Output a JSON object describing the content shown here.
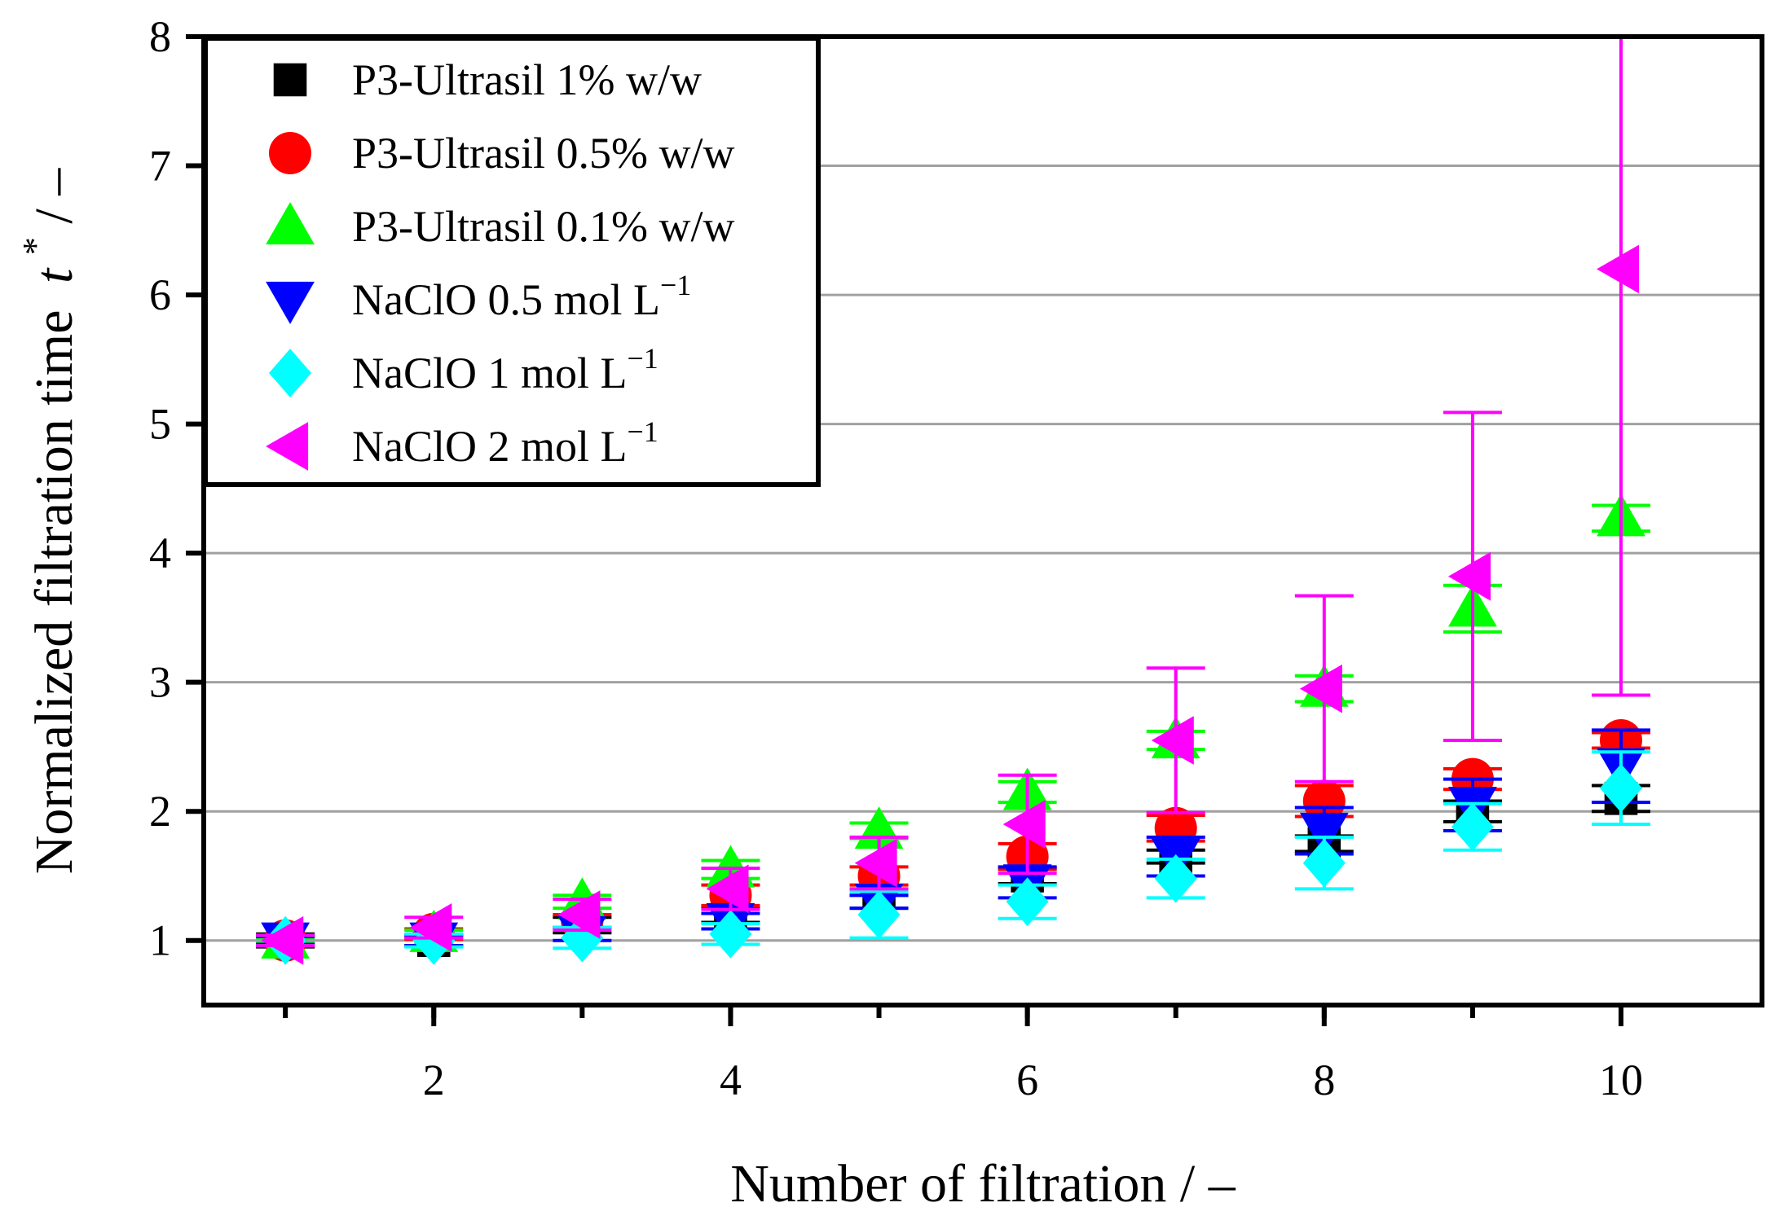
{
  "chart_data": {
    "type": "scatter",
    "xlabel": "Number of filtration / –",
    "ylabel": "Normalized filtration time",
    "ylabel_symbol": "t",
    "ylabel_superscript": "*",
    "ylabel_unit": " / –",
    "xlim": [
      0.45,
      10.95
    ],
    "ylim": [
      0.5,
      8
    ],
    "x_ticks": [
      2,
      4,
      6,
      8,
      10
    ],
    "x_tick_labels": [
      "2",
      "4",
      "6",
      "8",
      "10"
    ],
    "y_ticks": [
      1,
      2,
      3,
      4,
      5,
      6,
      7,
      8
    ],
    "y_tick_labels": [
      "1",
      "2",
      "3",
      "4",
      "5",
      "6",
      "7",
      "8"
    ],
    "grid": "horizontal",
    "legend_position": "top-left",
    "x": [
      1,
      2,
      3,
      4,
      5,
      6,
      7,
      8,
      9,
      10
    ],
    "series": [
      {
        "name": "P3-Ultrasil 1% w/w",
        "legend_main": "P3-Ultrasil 1% w/w",
        "legend_sup": "",
        "marker": "square",
        "color": "#000000",
        "values": [
          1.0,
          1.0,
          1.12,
          1.2,
          1.3,
          1.5,
          1.65,
          1.75,
          2.0,
          2.1
        ],
        "errors": [
          0.05,
          0.04,
          0.06,
          0.06,
          0.05,
          0.06,
          0.05,
          0.06,
          0.08,
          0.1
        ]
      },
      {
        "name": "P3-Ultrasil 0.5% w/w",
        "legend_main": "P3-Ultrasil 0.5% w/w",
        "legend_sup": "",
        "marker": "circle",
        "color": "#ff0000",
        "values": [
          1.0,
          1.05,
          1.15,
          1.35,
          1.5,
          1.65,
          1.87,
          2.08,
          2.25,
          2.55
        ],
        "errors": [
          0.03,
          0.04,
          0.05,
          0.08,
          0.07,
          0.1,
          0.1,
          0.12,
          0.08,
          0.06
        ]
      },
      {
        "name": "P3-Ultrasil 0.1% w/w",
        "legend_main": "P3-Ultrasil 0.1% w/w",
        "legend_sup": "",
        "marker": "triangle-up",
        "color": "#00ff00",
        "values": [
          1.0,
          1.05,
          1.3,
          1.55,
          1.85,
          2.15,
          2.55,
          2.95,
          3.57,
          4.27
        ],
        "errors": [
          0.02,
          0.03,
          0.05,
          0.07,
          0.06,
          0.08,
          0.07,
          0.1,
          0.18,
          0.1
        ]
      },
      {
        "name": "NaClO 0.5 mol L⁻¹",
        "legend_main": "NaClO 0.5 mol L",
        "legend_sup": "−1",
        "marker": "triangle-down",
        "color": "#0000ff",
        "values": [
          1.0,
          1.0,
          1.05,
          1.15,
          1.3,
          1.45,
          1.65,
          1.85,
          2.05,
          2.35
        ],
        "errors": [
          0.03,
          0.04,
          0.05,
          0.06,
          0.05,
          0.12,
          0.15,
          0.18,
          0.2,
          0.28
        ]
      },
      {
        "name": "NaClO 1 mol L⁻¹",
        "legend_main": "NaClO 1 mol L",
        "legend_sup": "−1",
        "marker": "diamond",
        "color": "#00ffff",
        "values": [
          1.0,
          1.0,
          1.02,
          1.05,
          1.2,
          1.3,
          1.48,
          1.6,
          1.88,
          2.18
        ],
        "errors": [
          0.04,
          0.05,
          0.08,
          0.08,
          0.18,
          0.13,
          0.15,
          0.2,
          0.18,
          0.28
        ]
      },
      {
        "name": "NaClO 2 mol L⁻¹",
        "legend_main": "NaClO 2 mol L",
        "legend_sup": "−1",
        "marker": "triangle-left",
        "color": "#ff00ff",
        "values": [
          1.0,
          1.1,
          1.2,
          1.4,
          1.6,
          1.9,
          2.55,
          2.95,
          3.82,
          6.2
        ],
        "errors": [
          0.04,
          0.08,
          0.12,
          0.16,
          0.2,
          0.38,
          0.56,
          0.72,
          1.27,
          3.3
        ]
      }
    ]
  }
}
